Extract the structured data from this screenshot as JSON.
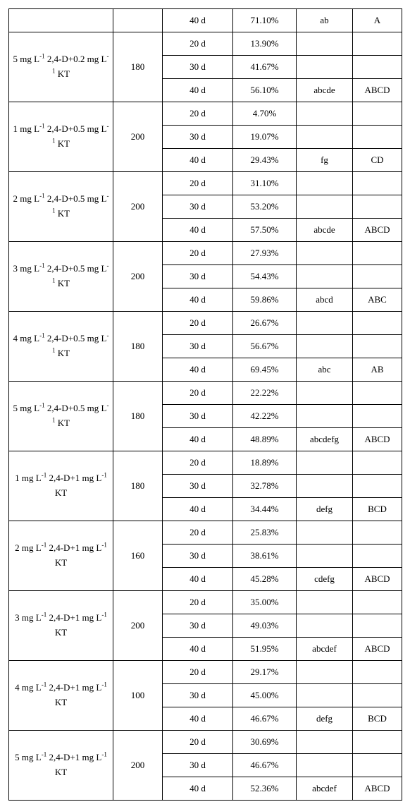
{
  "first_row": {
    "time": "40 d",
    "pct": "71.10%",
    "lc": "ab",
    "uc": "A"
  },
  "groups": [
    {
      "treatment_html": "5 mg L<sup>-1</sup> 2,4-D+0.2 mg L<sup>-1</sup> KT",
      "n": "180",
      "rows": [
        {
          "time": "20 d",
          "pct": "13.90%",
          "lc": "",
          "uc": ""
        },
        {
          "time": "30 d",
          "pct": "41.67%",
          "lc": "",
          "uc": ""
        },
        {
          "time": "40 d",
          "pct": "56.10%",
          "lc": "abcde",
          "uc": "ABCD"
        }
      ]
    },
    {
      "treatment_html": "1 mg L<sup>-1</sup> 2,4-D+0.5 mg L<sup>-1</sup> KT",
      "n": "200",
      "rows": [
        {
          "time": "20 d",
          "pct": "4.70%",
          "lc": "",
          "uc": ""
        },
        {
          "time": "30 d",
          "pct": "19.07%",
          "lc": "",
          "uc": ""
        },
        {
          "time": "40 d",
          "pct": "29.43%",
          "lc": "fg",
          "uc": "CD"
        }
      ]
    },
    {
      "treatment_html": "2 mg L<sup>-1</sup> 2,4-D+0.5 mg L<sup>-1</sup> KT",
      "n": "200",
      "rows": [
        {
          "time": "20 d",
          "pct": "31.10%",
          "lc": "",
          "uc": ""
        },
        {
          "time": "30 d",
          "pct": "53.20%",
          "lc": "",
          "uc": ""
        },
        {
          "time": "40 d",
          "pct": "57.50%",
          "lc": "abcde",
          "uc": "ABCD"
        }
      ]
    },
    {
      "treatment_html": "3 mg L<sup>-1</sup> 2,4-D+0.5 mg L<sup>-1</sup> KT",
      "n": "200",
      "rows": [
        {
          "time": "20 d",
          "pct": "27.93%",
          "lc": "",
          "uc": ""
        },
        {
          "time": "30 d",
          "pct": "54.43%",
          "lc": "",
          "uc": ""
        },
        {
          "time": "40 d",
          "pct": "59.86%",
          "lc": "abcd",
          "uc": "ABC"
        }
      ]
    },
    {
      "treatment_html": "4 mg L<sup>-1</sup> 2,4-D+0.5 mg L<sup>-1</sup> KT",
      "n": "180",
      "rows": [
        {
          "time": "20 d",
          "pct": "26.67%",
          "lc": "",
          "uc": ""
        },
        {
          "time": "30 d",
          "pct": "56.67%",
          "lc": "",
          "uc": ""
        },
        {
          "time": "40 d",
          "pct": "69.45%",
          "lc": "abc",
          "uc": "AB"
        }
      ]
    },
    {
      "treatment_html": "5 mg L<sup>-1</sup> 2,4-D+0.5 mg L<sup>-1</sup> KT",
      "n": "180",
      "rows": [
        {
          "time": "20 d",
          "pct": "22.22%",
          "lc": "",
          "uc": ""
        },
        {
          "time": "30 d",
          "pct": "42.22%",
          "lc": "",
          "uc": ""
        },
        {
          "time": "40 d",
          "pct": "48.89%",
          "lc": "abcdefg",
          "uc": "ABCD"
        }
      ]
    },
    {
      "treatment_html": "1 mg L<sup>-1</sup> 2,4-D+1 mg L<sup>-1</sup> KT",
      "n": "180",
      "rows": [
        {
          "time": "20 d",
          "pct": "18.89%",
          "lc": "",
          "uc": ""
        },
        {
          "time": "30 d",
          "pct": "32.78%",
          "lc": "",
          "uc": ""
        },
        {
          "time": "40 d",
          "pct": "34.44%",
          "lc": "defg",
          "uc": "BCD"
        }
      ]
    },
    {
      "treatment_html": "2 mg L<sup>-1</sup> 2,4-D+1 mg L<sup>-1</sup> KT",
      "n": "160",
      "rows": [
        {
          "time": "20 d",
          "pct": "25.83%",
          "lc": "",
          "uc": ""
        },
        {
          "time": "30 d",
          "pct": "38.61%",
          "lc": "",
          "uc": ""
        },
        {
          "time": "40 d",
          "pct": "45.28%",
          "lc": "cdefg",
          "uc": "ABCD"
        }
      ]
    },
    {
      "treatment_html": "3 mg L<sup>-1</sup> 2,4-D+1 mg L<sup>-1</sup> KT",
      "n": "200",
      "rows": [
        {
          "time": "20 d",
          "pct": "35.00%",
          "lc": "",
          "uc": ""
        },
        {
          "time": "30 d",
          "pct": "49.03%",
          "lc": "",
          "uc": ""
        },
        {
          "time": "40 d",
          "pct": "51.95%",
          "lc": "abcdef",
          "uc": "ABCD"
        }
      ]
    },
    {
      "treatment_html": "4 mg L<sup>-1</sup> 2,4-D+1 mg L<sup>-1</sup> KT",
      "n": "100",
      "rows": [
        {
          "time": "20 d",
          "pct": "29.17%",
          "lc": "",
          "uc": ""
        },
        {
          "time": "30 d",
          "pct": "45.00%",
          "lc": "",
          "uc": ""
        },
        {
          "time": "40 d",
          "pct": "46.67%",
          "lc": "defg",
          "uc": "BCD"
        }
      ]
    },
    {
      "treatment_html": "5 mg L<sup>-1</sup> 2,4-D+1 mg L<sup>-1</sup> KT",
      "n": "200",
      "rows": [
        {
          "time": "20 d",
          "pct": "30.69%",
          "lc": "",
          "uc": ""
        },
        {
          "time": "30 d",
          "pct": "46.67%",
          "lc": "",
          "uc": ""
        },
        {
          "time": "40 d",
          "pct": "52.36%",
          "lc": "abcdef",
          "uc": "ABCD"
        }
      ]
    }
  ]
}
